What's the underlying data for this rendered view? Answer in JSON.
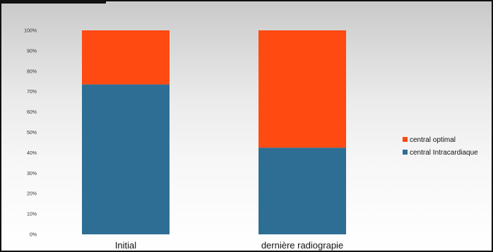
{
  "chart_data": {
    "type": "bar",
    "stacked": true,
    "percent": true,
    "categories": [
      "Initial",
      "dernière radiograpie"
    ],
    "series": [
      {
        "name": "central Intracardiaque",
        "values": [
          73.5,
          42.5
        ],
        "color": "#2E6E95"
      },
      {
        "name": "central optimal",
        "values": [
          26.5,
          57.5
        ],
        "color": "#FF4A12"
      }
    ],
    "ylim": [
      0,
      100
    ],
    "yticks": [
      "0%",
      "10%",
      "20%",
      "30%",
      "40%",
      "50%",
      "60%",
      "70%",
      "80%",
      "90%",
      "100%"
    ],
    "legend_position": "right",
    "legend_order": [
      "central optimal",
      "central Intracardiaque"
    ],
    "grid": false
  }
}
